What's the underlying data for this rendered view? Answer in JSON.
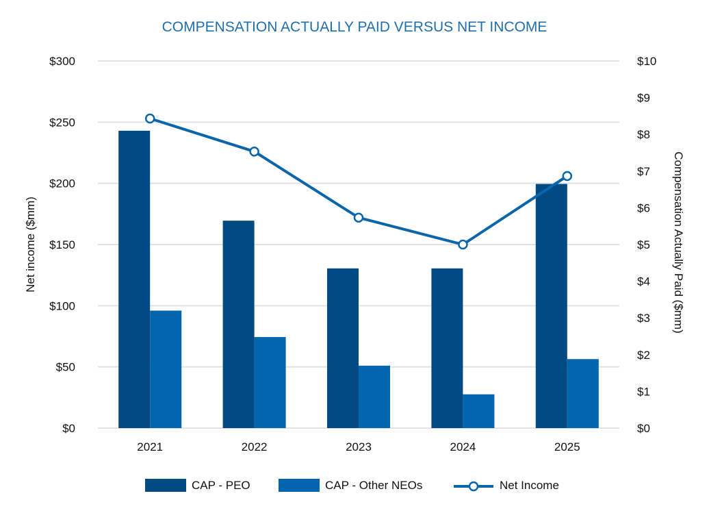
{
  "chart_data": {
    "type": "bar",
    "title": "COMPENSATION ACTUALLY PAID VERSUS NET INCOME",
    "categories": [
      "2021",
      "2022",
      "2023",
      "2024",
      "2025"
    ],
    "ylabel_left": "Net income ($mm)",
    "ylabel_right": "Compensation Actually Paid ($mm)",
    "ylim_left": [
      0,
      300
    ],
    "ylim_right": [
      0,
      10
    ],
    "yticks_left": [
      "$0",
      "$50",
      "$100",
      "$150",
      "$200",
      "$250",
      "$300"
    ],
    "yticks_right": [
      "$0",
      "$1",
      "$2",
      "$3",
      "$4",
      "$5",
      "$6",
      "$7",
      "$8",
      "$9",
      "$10"
    ],
    "grid": true,
    "legend_position": "bottom",
    "series": [
      {
        "name": "CAP - PEO",
        "type": "bar",
        "axis": "right",
        "color": "#024a82",
        "values": [
          8.1,
          5.65,
          4.35,
          4.35,
          6.65
        ]
      },
      {
        "name": "CAP - Other NEOs",
        "type": "bar",
        "axis": "right",
        "color": "#0166ad",
        "values": [
          3.2,
          2.48,
          1.7,
          0.92,
          1.88
        ]
      },
      {
        "name": "Net Income",
        "type": "line",
        "axis": "left",
        "color": "#0a66ab",
        "values": [
          253,
          226,
          172,
          150,
          206
        ]
      }
    ]
  }
}
